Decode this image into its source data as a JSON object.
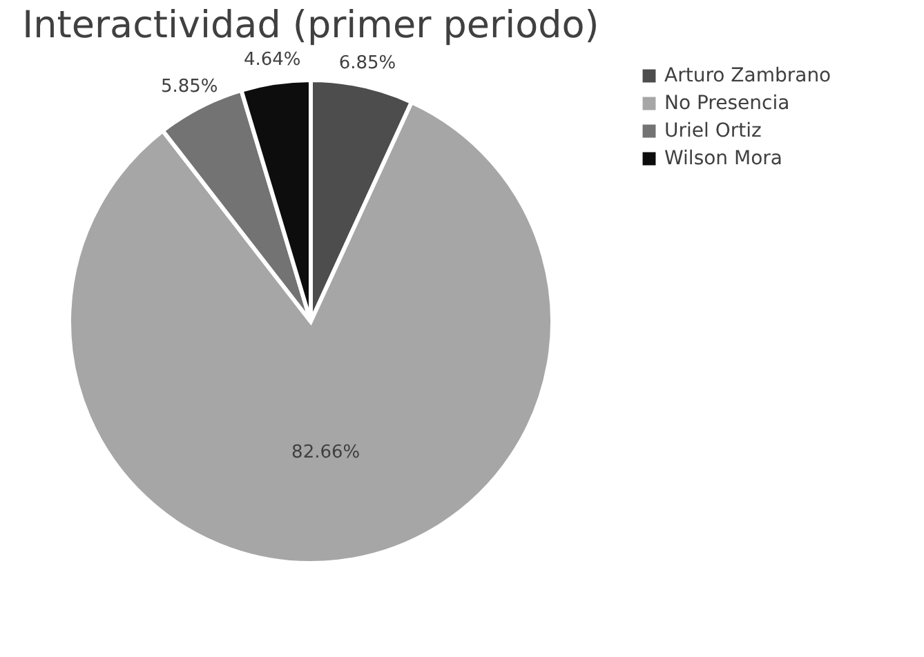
{
  "chart_data": {
    "type": "pie",
    "title": "Interactividad (primer periodo)",
    "categories": [
      "Arturo Zambrano",
      "No Presencia",
      "Uriel Ortiz",
      "Wilson Mora"
    ],
    "values": [
      6.85,
      82.66,
      5.85,
      4.64
    ],
    "colors": [
      "#4d4d4d",
      "#a6a6a6",
      "#737373",
      "#0d0d0d"
    ],
    "value_labels": [
      "6.85%",
      "82.66%",
      "5.85%",
      "4.64%"
    ],
    "legend": "right"
  }
}
